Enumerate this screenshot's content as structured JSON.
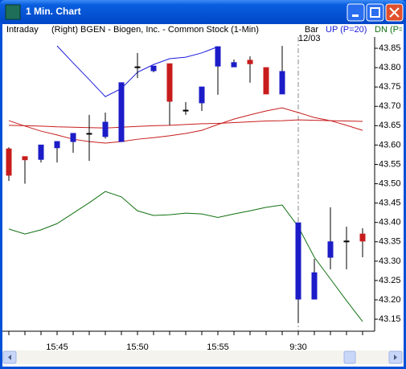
{
  "window": {
    "title": "1 Min. Chart"
  },
  "chart_data": {
    "type": "candlestick",
    "title": "Intraday",
    "subtitle": "(Right) BGEN - Biogen, Inc. - Common Stock (1-Min)",
    "candle_name": "Bar",
    "date_label": "12/03",
    "up_color": "#1c1cc8",
    "down_color": "#c81c1c",
    "categories": [
      null,
      null,
      null,
      "15:45",
      null,
      null,
      null,
      null,
      "15:50",
      null,
      null,
      null,
      null,
      "15:55",
      null,
      null,
      null,
      null,
      "9:30",
      null,
      null,
      null,
      null
    ],
    "open": [
      43.59,
      43.57,
      43.563,
      43.593,
      43.609,
      43.63,
      43.622,
      43.609,
      43.802,
      43.792,
      43.81,
      43.69,
      43.709,
      43.804,
      43.802,
      43.819,
      43.8,
      43.732,
      43.202,
      43.202,
      43.31,
      43.352,
      43.37
    ],
    "high": [
      43.594,
      43.57,
      43.6,
      43.609,
      43.63,
      43.678,
      43.684,
      43.761,
      43.838,
      43.804,
      43.81,
      43.711,
      43.75,
      43.854,
      43.821,
      43.829,
      43.8,
      43.856,
      43.399,
      43.306,
      43.439,
      43.389,
      43.385
    ],
    "low": [
      43.507,
      43.5,
      43.555,
      43.555,
      43.58,
      43.559,
      43.617,
      43.609,
      43.773,
      43.788,
      43.651,
      43.678,
      43.688,
      43.73,
      43.802,
      43.761,
      43.732,
      43.732,
      43.14,
      43.202,
      43.279,
      43.279,
      43.31
    ],
    "close": [
      43.522,
      43.562,
      43.6,
      43.609,
      43.63,
      43.63,
      43.659,
      43.761,
      43.802,
      43.804,
      43.713,
      43.69,
      43.75,
      43.854,
      43.813,
      43.81,
      43.732,
      43.79,
      43.399,
      43.27,
      43.35,
      43.352,
      43.352
    ],
    "series": [
      {
        "name": "UP (P=20)",
        "color": "#1c1cdc",
        "values": [
          null,
          null,
          null,
          43.856,
          43.812,
          43.769,
          43.725,
          43.746,
          43.788,
          43.808,
          43.823,
          43.827,
          43.838,
          43.854,
          null,
          null,
          null,
          null,
          null,
          null,
          null,
          null,
          null
        ]
      },
      {
        "name": "DN (P=",
        "color": "#107010",
        "values": [
          43.383,
          43.37,
          43.381,
          43.397,
          43.424,
          43.451,
          43.48,
          43.466,
          43.43,
          43.418,
          43.42,
          43.424,
          43.422,
          43.413,
          43.422,
          43.43,
          43.439,
          43.445,
          43.389,
          43.31,
          43.254,
          43.198,
          43.144
        ]
      },
      {
        "color": "#c81c1c",
        "values": [
          43.651,
          43.65,
          43.649,
          43.647,
          43.646,
          43.645,
          43.644,
          43.646,
          43.648,
          43.65,
          43.651,
          43.653,
          43.655,
          43.656,
          43.658,
          43.66,
          43.662,
          43.663,
          43.665,
          43.664,
          43.663,
          43.662,
          43.661
        ]
      },
      {
        "color": "#c81c1c",
        "values": [
          43.663,
          43.649,
          43.636,
          43.626,
          43.615,
          43.609,
          43.605,
          43.609,
          43.615,
          43.619,
          43.624,
          43.63,
          43.638,
          43.653,
          43.667,
          43.678,
          43.688,
          43.696,
          43.684,
          43.671,
          43.663,
          43.651,
          43.638
        ]
      }
    ],
    "ylim": [
      43.119,
      43.875
    ],
    "yticks": [
      43.15,
      {
        "value": 43.2,
        "label": "43.20"
      },
      43.25,
      {
        "value": 43.3,
        "label": "43.30"
      },
      43.35,
      {
        "value": 43.4,
        "label": "43.40"
      },
      43.45,
      {
        "value": 43.5,
        "label": "43.50"
      },
      43.55,
      {
        "value": 43.6,
        "label": "43.60"
      },
      43.65,
      {
        "value": 43.7,
        "label": "43.70"
      },
      43.75,
      {
        "value": 43.8,
        "label": "43.80"
      },
      43.85
    ],
    "grid": false
  }
}
